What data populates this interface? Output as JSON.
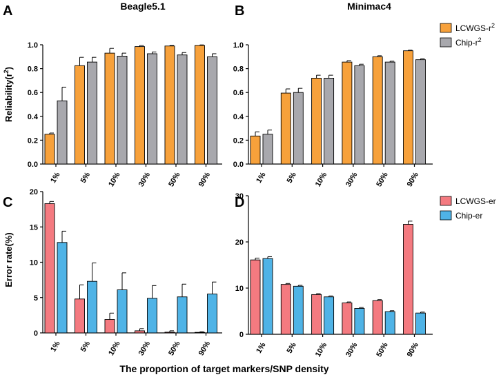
{
  "figure": {
    "xlabel": "The proportion of target markers/SNP density"
  },
  "legends": {
    "top": [
      {
        "label_main": "LCWGS-r",
        "label_sup": "2",
        "color": "#F7A13B"
      },
      {
        "label_main": "Chip-r",
        "label_sup": "2",
        "color": "#A8A8AD"
      }
    ],
    "bottom": [
      {
        "label": "LCWGS-er",
        "color": "#F47A80"
      },
      {
        "label": "Chip-er",
        "color": "#4FB3E6"
      }
    ]
  },
  "chart_data": [
    {
      "panel": "A",
      "type": "bar",
      "title": "Beagle5.1",
      "ylabel_main": "Reliability(r",
      "ylabel_sup": "2",
      "ylabel_tail": ")",
      "categories": [
        "1%",
        "5%",
        "10%",
        "30%",
        "50%",
        "90%"
      ],
      "ylim": [
        0,
        1.0
      ],
      "yticks": [
        "0.0",
        "0.2",
        "0.4",
        "0.6",
        "0.8",
        "1.0"
      ],
      "ytick_values": [
        0,
        0.2,
        0.4,
        0.6,
        0.8,
        1.0
      ],
      "series": [
        {
          "name": "LCWGS-r2",
          "color": "#F7A13B",
          "values": [
            0.25,
            0.825,
            0.93,
            0.985,
            0.99,
            0.995
          ],
          "errors": [
            0.01,
            0.07,
            0.04,
            0.01,
            0.005,
            0.004
          ]
        },
        {
          "name": "Chip-r2",
          "color": "#A8A8AD",
          "values": [
            0.53,
            0.855,
            0.905,
            0.925,
            0.915,
            0.9
          ],
          "errors": [
            0.115,
            0.04,
            0.025,
            0.015,
            0.02,
            0.025
          ]
        }
      ]
    },
    {
      "panel": "B",
      "type": "bar",
      "title": "Minimac4",
      "categories": [
        "1%",
        "5%",
        "10%",
        "30%",
        "50%",
        "90%"
      ],
      "ylim": [
        0,
        1.0
      ],
      "yticks": [
        "0.0",
        "0.2",
        "0.4",
        "0.6",
        "0.8",
        "1.0"
      ],
      "ytick_values": [
        0,
        0.2,
        0.4,
        0.6,
        0.8,
        1.0
      ],
      "series": [
        {
          "name": "LCWGS-r2",
          "color": "#F7A13B",
          "values": [
            0.235,
            0.595,
            0.72,
            0.855,
            0.9,
            0.95
          ],
          "errors": [
            0.035,
            0.035,
            0.025,
            0.012,
            0.008,
            0.005
          ]
        },
        {
          "name": "Chip-r2",
          "color": "#A8A8AD",
          "values": [
            0.25,
            0.6,
            0.72,
            0.825,
            0.855,
            0.875
          ],
          "errors": [
            0.035,
            0.035,
            0.025,
            0.012,
            0.008,
            0.008
          ]
        }
      ]
    },
    {
      "panel": "C",
      "type": "bar",
      "ylabel_main": "Error rate(%)",
      "categories": [
        "1%",
        "5%",
        "10%",
        "30%",
        "50%",
        "90%"
      ],
      "ylim": [
        0,
        20
      ],
      "yticks": [
        "0",
        "5",
        "10",
        "15",
        "20"
      ],
      "ytick_values": [
        0,
        5,
        10,
        15,
        20
      ],
      "series": [
        {
          "name": "LCWGS-er",
          "color": "#F47A80",
          "values": [
            18.3,
            4.8,
            1.9,
            0.3,
            0.1,
            0.05
          ],
          "errors": [
            0.3,
            2.0,
            0.9,
            0.3,
            0.2,
            0.1
          ]
        },
        {
          "name": "Chip-er",
          "color": "#4FB3E6",
          "values": [
            12.8,
            7.3,
            6.1,
            4.9,
            5.1,
            5.5
          ],
          "errors": [
            1.6,
            2.6,
            2.4,
            1.8,
            1.8,
            1.7
          ]
        }
      ]
    },
    {
      "panel": "D",
      "type": "bar",
      "categories": [
        "1%",
        "5%",
        "10%",
        "30%",
        "50%",
        "90%"
      ],
      "ylim": [
        0,
        30
      ],
      "yticks": [
        "0",
        "10",
        "20",
        "30"
      ],
      "ytick_values": [
        0,
        10,
        20,
        30
      ],
      "series": [
        {
          "name": "LCWGS-er",
          "color": "#F47A80",
          "values": [
            16.1,
            10.8,
            8.6,
            6.8,
            7.3,
            23.8
          ],
          "errors": [
            0.4,
            0.2,
            0.2,
            0.2,
            0.2,
            0.7
          ]
        },
        {
          "name": "Chip-er",
          "color": "#4FB3E6",
          "values": [
            16.4,
            10.4,
            8.1,
            5.6,
            4.9,
            4.6
          ],
          "errors": [
            0.4,
            0.2,
            0.2,
            0.2,
            0.2,
            0.2
          ]
        }
      ]
    }
  ]
}
